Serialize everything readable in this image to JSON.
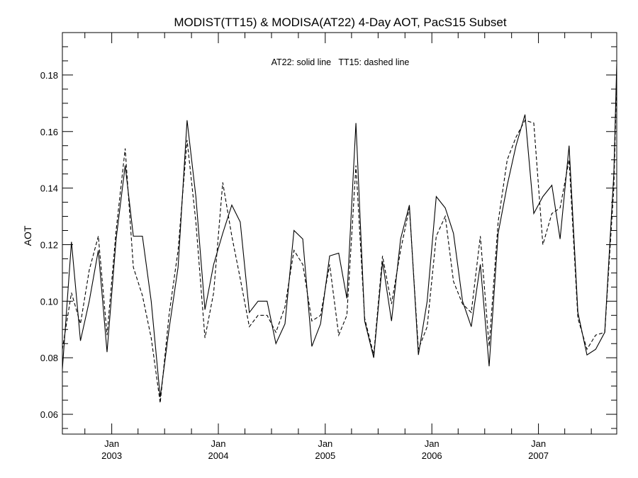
{
  "chart_data": {
    "type": "line",
    "title": "MODIST(TT15) & MODISA(AT22) 4-Day AOT, PacS15 Subset",
    "ylabel": "AOT",
    "xlabel": "",
    "annotation": "AT22: solid line   TT15: dashed line",
    "xlim": [
      "2002-07-16",
      "2007-09-26"
    ],
    "ylim": [
      0.053,
      0.195
    ],
    "y_ticks": [
      0.06,
      0.08,
      0.1,
      0.12,
      0.14,
      0.16,
      0.18
    ],
    "y_tick_labels": [
      "0.06",
      "0.08",
      "0.10",
      "0.12",
      "0.14",
      "0.16",
      "0.18"
    ],
    "x_major_ticks": [
      {
        "date": "2003-01-01",
        "month": "Jan",
        "year": "2003"
      },
      {
        "date": "2004-01-01",
        "month": "Jan",
        "year": "2004"
      },
      {
        "date": "2005-01-01",
        "month": "Jan",
        "year": "2005"
      },
      {
        "date": "2006-01-01",
        "month": "Jan",
        "year": "2006"
      },
      {
        "date": "2007-01-01",
        "month": "Jan",
        "year": "2007"
      }
    ],
    "grid": false,
    "series": [
      {
        "style": "solid",
        "points": [
          [
            "2002-07-16",
            0.076
          ],
          [
            "2002-08-16",
            0.121
          ],
          [
            "2002-09-16",
            0.086
          ],
          [
            "2002-10-16",
            0.1
          ],
          [
            "2002-11-16",
            0.118
          ],
          [
            "2002-12-16",
            0.082
          ],
          [
            "2003-01-16",
            0.122
          ],
          [
            "2003-02-16",
            0.148
          ],
          [
            "2003-03-16",
            0.123
          ],
          [
            "2003-04-16",
            0.123
          ],
          [
            "2003-05-16",
            0.1
          ],
          [
            "2003-06-16",
            0.066
          ],
          [
            "2003-07-16",
            0.09
          ],
          [
            "2003-08-16",
            0.112
          ],
          [
            "2003-09-16",
            0.164
          ],
          [
            "2003-10-16",
            0.137
          ],
          [
            "2003-11-16",
            0.097
          ],
          [
            "2003-12-16",
            0.113
          ],
          [
            "2004-01-16",
            0.124
          ],
          [
            "2004-02-16",
            0.134
          ],
          [
            "2004-03-16",
            0.128
          ],
          [
            "2004-04-16",
            0.096
          ],
          [
            "2004-05-16",
            0.1
          ],
          [
            "2004-06-16",
            0.1
          ],
          [
            "2004-07-16",
            0.085
          ],
          [
            "2004-08-16",
            0.092
          ],
          [
            "2004-09-16",
            0.125
          ],
          [
            "2004-10-16",
            0.122
          ],
          [
            "2004-11-16",
            0.084
          ],
          [
            "2004-12-16",
            0.092
          ],
          [
            "2005-01-16",
            0.116
          ],
          [
            "2005-02-16",
            0.117
          ],
          [
            "2005-03-16",
            0.101
          ],
          [
            "2005-04-16",
            0.163
          ],
          [
            "2005-05-16",
            0.093
          ],
          [
            "2005-06-16",
            0.08
          ],
          [
            "2005-07-16",
            0.114
          ],
          [
            "2005-08-16",
            0.093
          ],
          [
            "2005-09-16",
            0.122
          ],
          [
            "2005-10-16",
            0.134
          ],
          [
            "2005-11-16",
            0.081
          ],
          [
            "2005-12-16",
            0.1
          ],
          [
            "2006-01-16",
            0.137
          ],
          [
            "2006-02-16",
            0.133
          ],
          [
            "2006-03-16",
            0.124
          ],
          [
            "2006-04-16",
            0.1
          ],
          [
            "2006-05-16",
            0.091
          ],
          [
            "2006-06-16",
            0.113
          ],
          [
            "2006-07-16",
            0.077
          ],
          [
            "2006-08-16",
            0.124
          ],
          [
            "2006-09-16",
            0.141
          ],
          [
            "2006-10-16",
            0.155
          ],
          [
            "2006-11-16",
            0.166
          ],
          [
            "2006-12-16",
            0.131
          ],
          [
            "2007-01-16",
            0.137
          ],
          [
            "2007-02-16",
            0.141
          ],
          [
            "2007-03-16",
            0.122
          ],
          [
            "2007-04-16",
            0.155
          ],
          [
            "2007-05-16",
            0.096
          ],
          [
            "2007-06-16",
            0.081
          ],
          [
            "2007-07-16",
            0.083
          ],
          [
            "2007-08-16",
            0.089
          ],
          [
            "2007-09-16",
            0.145
          ],
          [
            "2007-09-26",
            0.184
          ]
        ]
      },
      {
        "style": "dashed",
        "points": [
          [
            "2002-07-16",
            0.083
          ],
          [
            "2002-08-16",
            0.103
          ],
          [
            "2002-09-16",
            0.092
          ],
          [
            "2002-10-16",
            0.111
          ],
          [
            "2002-11-16",
            0.123
          ],
          [
            "2002-12-16",
            0.088
          ],
          [
            "2003-01-16",
            0.125
          ],
          [
            "2003-02-16",
            0.154
          ],
          [
            "2003-03-16",
            0.112
          ],
          [
            "2003-04-16",
            0.102
          ],
          [
            "2003-05-16",
            0.087
          ],
          [
            "2003-06-16",
            0.064
          ],
          [
            "2003-07-16",
            0.095
          ],
          [
            "2003-08-16",
            0.118
          ],
          [
            "2003-09-16",
            0.157
          ],
          [
            "2003-10-16",
            0.128
          ],
          [
            "2003-11-16",
            0.087
          ],
          [
            "2003-12-16",
            0.103
          ],
          [
            "2004-01-16",
            0.142
          ],
          [
            "2004-02-16",
            0.123
          ],
          [
            "2004-03-16",
            0.108
          ],
          [
            "2004-04-16",
            0.091
          ],
          [
            "2004-05-16",
            0.095
          ],
          [
            "2004-06-16",
            0.095
          ],
          [
            "2004-07-16",
            0.089
          ],
          [
            "2004-08-16",
            0.098
          ],
          [
            "2004-09-16",
            0.118
          ],
          [
            "2004-10-16",
            0.113
          ],
          [
            "2004-11-16",
            0.093
          ],
          [
            "2004-12-16",
            0.095
          ],
          [
            "2005-01-16",
            0.113
          ],
          [
            "2005-02-16",
            0.088
          ],
          [
            "2005-03-16",
            0.095
          ],
          [
            "2005-04-16",
            0.148
          ],
          [
            "2005-05-16",
            0.094
          ],
          [
            "2005-06-16",
            0.081
          ],
          [
            "2005-07-16",
            0.116
          ],
          [
            "2005-08-16",
            0.099
          ],
          [
            "2005-09-16",
            0.118
          ],
          [
            "2005-10-16",
            0.133
          ],
          [
            "2005-11-16",
            0.083
          ],
          [
            "2005-12-16",
            0.091
          ],
          [
            "2006-01-16",
            0.123
          ],
          [
            "2006-02-16",
            0.13
          ],
          [
            "2006-03-16",
            0.107
          ],
          [
            "2006-04-16",
            0.099
          ],
          [
            "2006-05-16",
            0.096
          ],
          [
            "2006-06-16",
            0.123
          ],
          [
            "2006-07-16",
            0.084
          ],
          [
            "2006-08-16",
            0.128
          ],
          [
            "2006-09-16",
            0.15
          ],
          [
            "2006-10-16",
            0.158
          ],
          [
            "2006-11-16",
            0.164
          ],
          [
            "2006-12-16",
            0.163
          ],
          [
            "2007-01-16",
            0.12
          ],
          [
            "2007-02-16",
            0.131
          ],
          [
            "2007-03-16",
            0.133
          ],
          [
            "2007-04-16",
            0.15
          ],
          [
            "2007-05-16",
            0.094
          ],
          [
            "2007-06-16",
            0.083
          ],
          [
            "2007-07-16",
            0.088
          ],
          [
            "2007-08-16",
            0.089
          ],
          [
            "2007-09-16",
            0.14
          ],
          [
            "2007-09-26",
            0.18
          ]
        ]
      }
    ]
  }
}
